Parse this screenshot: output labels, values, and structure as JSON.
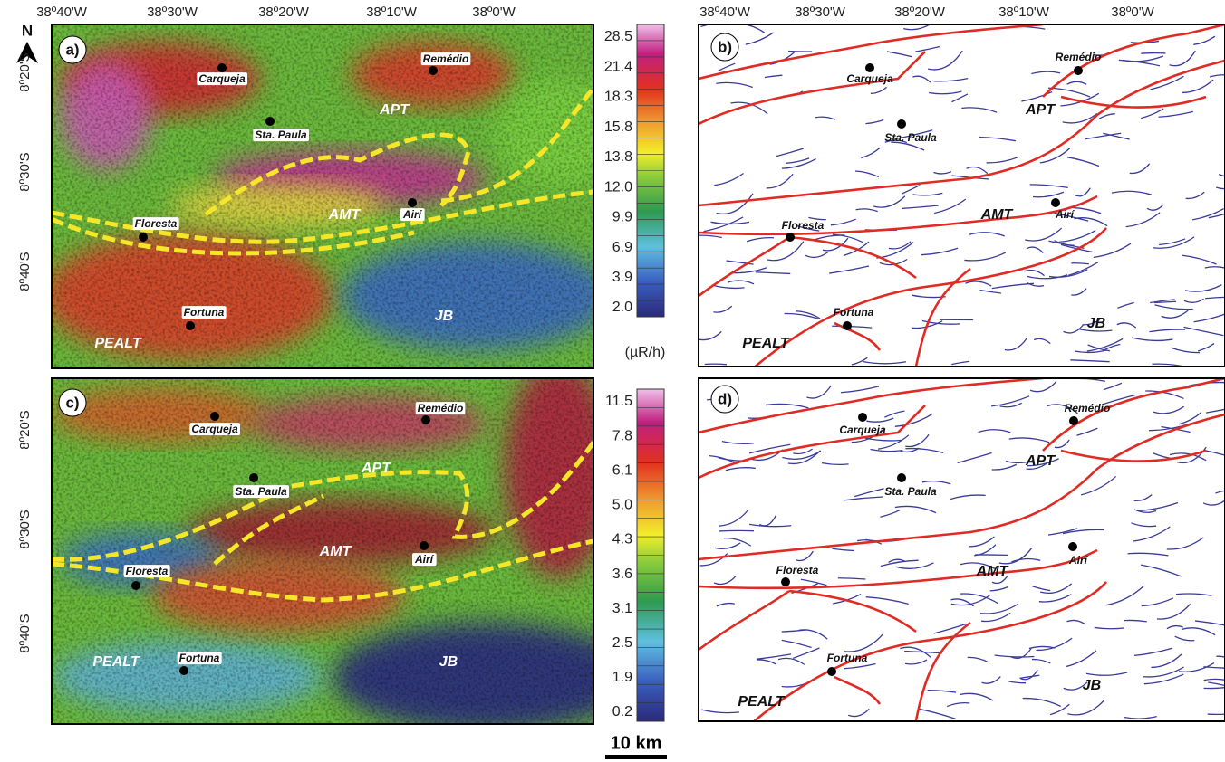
{
  "north": "N",
  "top_axis": [
    "38º40'W",
    "38º30'W",
    "38º20'W",
    "38º10'W",
    "38º0'W"
  ],
  "left_axis": [
    "8º20'S",
    "8º30'S",
    "8º40'S"
  ],
  "panels": [
    {
      "letter": "a)",
      "places": [
        "Carqueja",
        "Remédio",
        "Sta. Paula",
        "Floresta",
        "Airí",
        "Fortuna"
      ],
      "regions": [
        "APT",
        "AMT",
        "JB",
        "PEALT"
      ]
    },
    {
      "letter": "b)",
      "places": [
        "Carqueja",
        "Remédio",
        "Sta. Paula",
        "Floresta",
        "Airí",
        "Fortuna"
      ],
      "regions": [
        "APT",
        "AMT",
        "JB",
        "PEALT"
      ]
    },
    {
      "letter": "c)",
      "places": [
        "Carqueja",
        "Remédio",
        "Sta. Paula",
        "Floresta",
        "Airí",
        "Fortuna"
      ],
      "regions": [
        "APT",
        "AMT",
        "JB",
        "PEALT"
      ]
    },
    {
      "letter": "d)",
      "places": [
        "Carqueja",
        "Remédio",
        "Sta. Paula",
        "Floresta",
        "Airí",
        "Fortuna"
      ],
      "regions": [
        "APT",
        "AMT",
        "JB",
        "PEALT"
      ]
    }
  ],
  "colorbars": [
    {
      "labels": [
        "28.5",
        "21.4",
        "18.3",
        "15.8",
        "13.8",
        "12.0",
        "9.9",
        "6.9",
        "3.9",
        "2.0"
      ],
      "unit": "(µR/h)"
    },
    {
      "labels": [
        "11.5",
        "7.8",
        "6.1",
        "5.0",
        "4.3",
        "3.6",
        "3.1",
        "2.5",
        "1.9",
        "0.2"
      ]
    }
  ],
  "scale_bar": "10 km"
}
